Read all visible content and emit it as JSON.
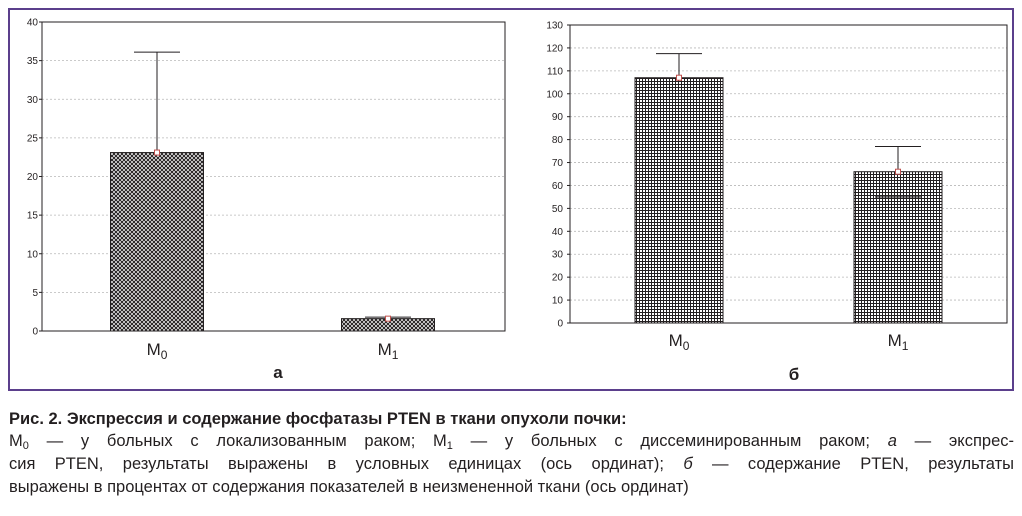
{
  "chart_data": [
    {
      "type": "bar",
      "panel_label": "а",
      "categories": [
        "M0",
        "M1"
      ],
      "category_labels": [
        {
          "base": "M",
          "sub": "0"
        },
        {
          "base": "M",
          "sub": "1"
        }
      ],
      "values": [
        23.1,
        1.6
      ],
      "error_upper": [
        36.1,
        1.8
      ],
      "yticks": [
        0,
        5,
        10,
        15,
        20,
        25,
        30,
        35,
        40
      ],
      "ylim": [
        0,
        40
      ],
      "grid": true,
      "bar_pattern": "dense crosshatch",
      "title": "",
      "xlabel": "",
      "ylabel": ""
    },
    {
      "type": "bar",
      "panel_label": "б",
      "categories": [
        "M0",
        "M1"
      ],
      "category_labels": [
        {
          "base": "M",
          "sub": "0"
        },
        {
          "base": "M",
          "sub": "1"
        }
      ],
      "values": [
        107,
        66
      ],
      "error_upper": [
        117.5,
        77
      ],
      "error_lower": [
        null,
        55
      ],
      "yticks": [
        0,
        10,
        20,
        30,
        40,
        50,
        60,
        70,
        80,
        90,
        100,
        110,
        120,
        130
      ],
      "ylim": [
        0,
        130
      ],
      "grid": true,
      "bar_pattern": "square grid",
      "title": "",
      "xlabel": "",
      "ylabel": ""
    }
  ],
  "colors": {
    "frame": "#5b3f8c",
    "bar": "#231f20",
    "marker": "#c0504d",
    "grid": "#b8b8b8",
    "text": "#231f20"
  },
  "caption": {
    "title": "Рис. 2. Экспрессия и содержание фосфатазы PTEN в ткани опухоли почки:",
    "line1": [
      {
        "t": "M"
      },
      {
        "sub": "0"
      },
      {
        "t": " — у больных с локализованным раком; M"
      },
      {
        "sub": "1"
      },
      {
        "t": " — у больных с диссеминированным раком; "
      },
      {
        "i": "а"
      },
      {
        "t": " — экспрес-"
      }
    ],
    "line2": [
      {
        "t": "сия PTEN, результаты выражены в условных единицах (ось ординат); "
      },
      {
        "i": "б"
      },
      {
        "t": " — содержание PTEN, результаты"
      }
    ],
    "line3": [
      {
        "t": "выражены в процентах от содержания показателей в неизмененной ткани (ось ординат)"
      }
    ]
  }
}
